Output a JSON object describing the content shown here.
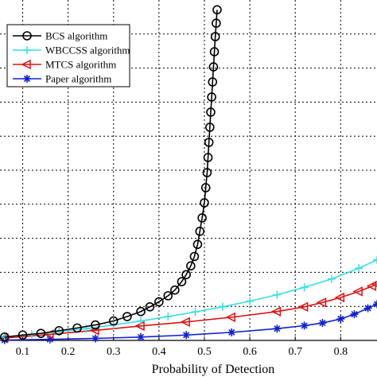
{
  "chart_data": {
    "type": "line",
    "title": "",
    "xlabel": "Probability of Detection",
    "ylabel": "",
    "xlim": [
      0.05,
      0.88
    ],
    "ylim": [
      0,
      1
    ],
    "x_ticks": [
      "0.1",
      "0.2",
      "0.3",
      "0.4",
      "0.5",
      "0.6",
      "0.7",
      "0.8"
    ],
    "y_gridlines": 10,
    "grid": true,
    "legend_position": "top-left",
    "series": [
      {
        "name": "BCS  algorithm",
        "color": "#000000",
        "marker": "circle",
        "points": [
          [
            0.06,
            0.01
          ],
          [
            0.1,
            0.016
          ],
          [
            0.14,
            0.021
          ],
          [
            0.18,
            0.029
          ],
          [
            0.22,
            0.037
          ],
          [
            0.26,
            0.046
          ],
          [
            0.3,
            0.058
          ],
          [
            0.33,
            0.071
          ],
          [
            0.36,
            0.086
          ],
          [
            0.38,
            0.1
          ],
          [
            0.4,
            0.115
          ],
          [
            0.42,
            0.133
          ],
          [
            0.435,
            0.15
          ],
          [
            0.45,
            0.175
          ],
          [
            0.46,
            0.196
          ],
          [
            0.47,
            0.222
          ],
          [
            0.478,
            0.25
          ],
          [
            0.485,
            0.286
          ],
          [
            0.49,
            0.325
          ],
          [
            0.495,
            0.365
          ],
          [
            0.5,
            0.41
          ],
          [
            0.503,
            0.455
          ],
          [
            0.506,
            0.5
          ],
          [
            0.508,
            0.545
          ],
          [
            0.51,
            0.59
          ],
          [
            0.512,
            0.635
          ],
          [
            0.514,
            0.68
          ],
          [
            0.516,
            0.725
          ],
          [
            0.518,
            0.77
          ],
          [
            0.52,
            0.815
          ],
          [
            0.522,
            0.86
          ],
          [
            0.524,
            0.905
          ],
          [
            0.526,
            0.945
          ],
          [
            0.528,
            0.985
          ]
        ]
      },
      {
        "name": "WBCCSS  algorithm",
        "color": "#33e0e6",
        "marker": "plus",
        "points": [
          [
            0.06,
            0.01
          ],
          [
            0.12,
            0.018
          ],
          [
            0.18,
            0.026
          ],
          [
            0.24,
            0.035
          ],
          [
            0.3,
            0.046
          ],
          [
            0.36,
            0.058
          ],
          [
            0.42,
            0.071
          ],
          [
            0.48,
            0.085
          ],
          [
            0.54,
            0.1
          ],
          [
            0.6,
            0.117
          ],
          [
            0.66,
            0.136
          ],
          [
            0.72,
            0.158
          ],
          [
            0.78,
            0.183
          ],
          [
            0.84,
            0.215
          ],
          [
            0.88,
            0.24
          ]
        ]
      },
      {
        "name": "MTCS  algorithm",
        "color": "#e01010",
        "marker": "triangle-left",
        "points": [
          [
            0.06,
            0.007
          ],
          [
            0.16,
            0.018
          ],
          [
            0.26,
            0.03
          ],
          [
            0.36,
            0.043
          ],
          [
            0.46,
            0.055
          ],
          [
            0.56,
            0.069
          ],
          [
            0.66,
            0.086
          ],
          [
            0.72,
            0.1
          ],
          [
            0.76,
            0.113
          ],
          [
            0.8,
            0.128
          ],
          [
            0.84,
            0.146
          ],
          [
            0.87,
            0.162
          ],
          [
            0.88,
            0.168
          ]
        ]
      },
      {
        "name": "Paper algorithm",
        "color": "#1020d0",
        "marker": "star",
        "points": [
          [
            0.06,
            0.001
          ],
          [
            0.16,
            0.003
          ],
          [
            0.26,
            0.006
          ],
          [
            0.36,
            0.01
          ],
          [
            0.46,
            0.016
          ],
          [
            0.56,
            0.024
          ],
          [
            0.66,
            0.035
          ],
          [
            0.72,
            0.044
          ],
          [
            0.76,
            0.052
          ],
          [
            0.8,
            0.064
          ],
          [
            0.83,
            0.078
          ],
          [
            0.86,
            0.096
          ],
          [
            0.88,
            0.108
          ]
        ]
      }
    ]
  }
}
